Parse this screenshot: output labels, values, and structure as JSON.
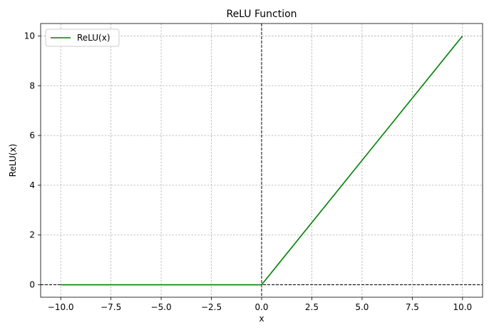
{
  "chart_data": {
    "type": "line",
    "title": "ReLU Function",
    "xlabel": "x",
    "ylabel": "ReLU(x)",
    "xlim": [
      -11,
      11
    ],
    "ylim": [
      -0.5,
      10.5
    ],
    "xticks": [
      -10,
      -7.5,
      -5,
      -2.5,
      0,
      2.5,
      5,
      7.5,
      10
    ],
    "xtick_labels": [
      "−10.0",
      "−7.5",
      "−5.0",
      "−2.5",
      "0.0",
      "2.5",
      "5.0",
      "7.5",
      "10.0"
    ],
    "yticks": [
      0,
      2,
      4,
      6,
      8,
      10
    ],
    "ytick_labels": [
      "0",
      "2",
      "4",
      "6",
      "8",
      "10"
    ],
    "grid": true,
    "legend_position": "top-left",
    "reference_lines": {
      "x": 0,
      "y": 0
    },
    "series": [
      {
        "name": "ReLU(x)",
        "color": "#008000",
        "x": [
          -10,
          0,
          10
        ],
        "y": [
          0,
          0,
          10
        ]
      }
    ]
  }
}
